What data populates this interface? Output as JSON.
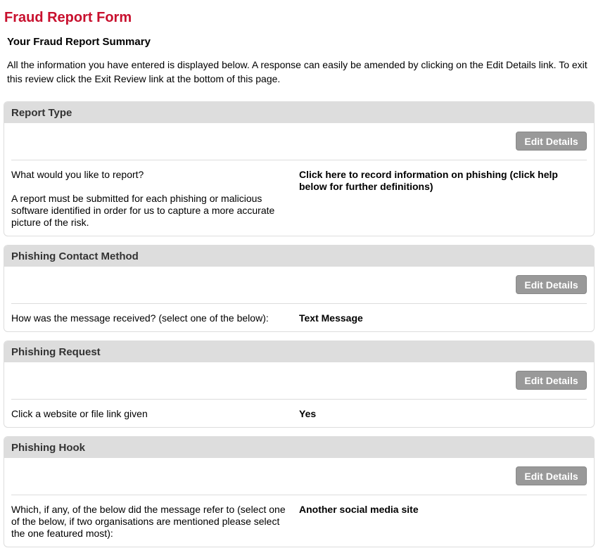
{
  "title": "Fraud Report Form",
  "subtitle": "Your Fraud Report Summary",
  "intro": "All the information you have entered is displayed below. A response can easily be amended by clicking on the Edit Details link. To exit this review click the Exit Review link at the bottom of this page.",
  "edit_label": "Edit Details",
  "sections": [
    {
      "heading": "Report Type",
      "question": "What would you like to report?",
      "note": "A report must be submitted for each phishing or malicious software identified in order for us to capture a more accurate picture of the risk.",
      "answer": "Click here to record information on phishing (click help below for further definitions)"
    },
    {
      "heading": "Phishing Contact Method",
      "question": "How was the message received? (select one of the below):",
      "answer": "Text Message"
    },
    {
      "heading": "Phishing Request",
      "question": "Click a website or file link given",
      "answer": "Yes"
    },
    {
      "heading": "Phishing Hook",
      "question": "Which, if any, of the below did the message refer to (select one of the below, if two organisations are mentioned please select the one featured most):",
      "answer": "Another social media site"
    }
  ]
}
